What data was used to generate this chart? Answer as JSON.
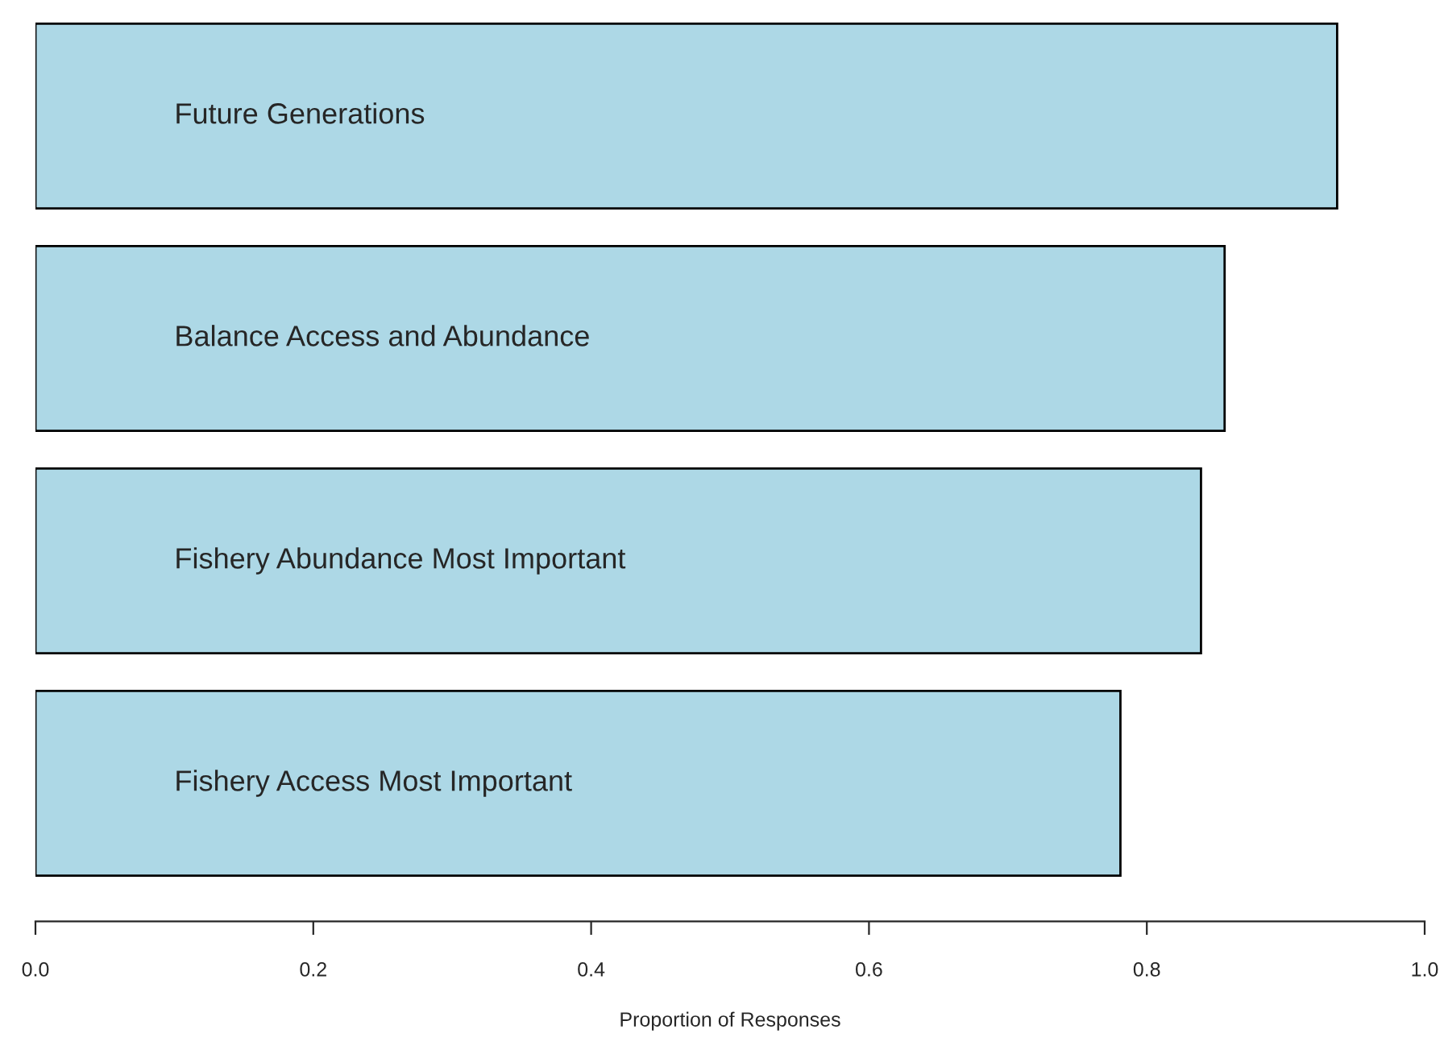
{
  "chart_data": {
    "type": "bar",
    "orientation": "horizontal",
    "xlabel": "Proportion of Responses",
    "categories": [
      "Future Generations",
      "Balance Access and Abundance",
      "Fishery Abundance Most Important",
      "Fishery Access Most Important"
    ],
    "values": [
      0.937,
      0.856,
      0.839,
      0.781
    ],
    "color": "#add8e6",
    "xlim": [
      0,
      1
    ],
    "xticks": [
      {
        "value": 0,
        "label": "0.0"
      },
      {
        "value": 0.2,
        "label": "0.2"
      },
      {
        "value": 0.4,
        "label": "0.4"
      },
      {
        "value": 0.6,
        "label": "0.6"
      },
      {
        "value": 0.8,
        "label": "0.8"
      },
      {
        "value": 1,
        "label": "1.0"
      }
    ],
    "tick_labels": "x",
    "grid": false,
    "legend": false
  }
}
